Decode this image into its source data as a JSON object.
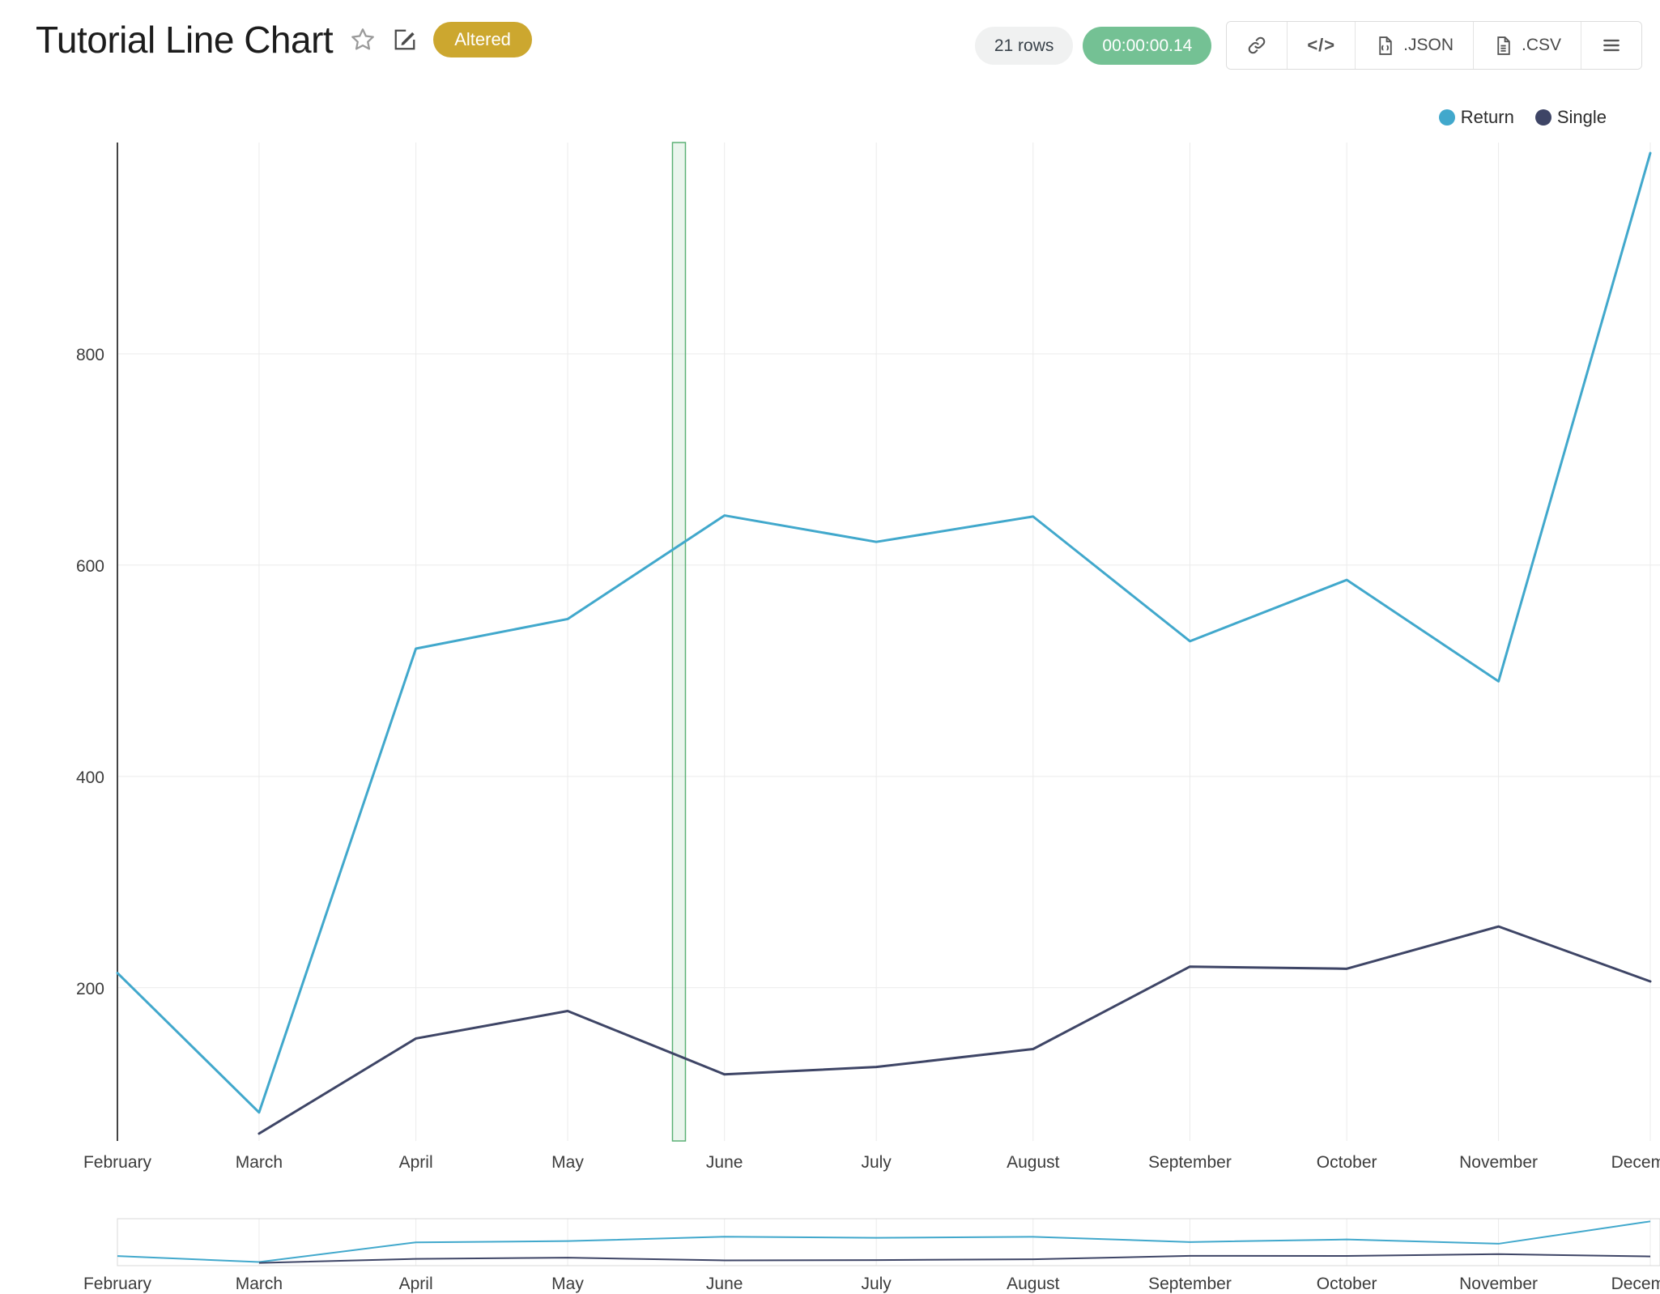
{
  "header": {
    "title": "Tutorial Line Chart",
    "badge": "Altered",
    "rows_count": "21 rows",
    "execution_time": "00:00:00.14",
    "buttons": {
      "code": "</>",
      "json": ".JSON",
      "csv": ".CSV"
    }
  },
  "colors": {
    "badge": "#cca72f",
    "timer_pill": "#74c194",
    "rows_pill": "#f0f1f1",
    "selection_band": "#5cb176",
    "grid": "#ebebeb",
    "axis": "#444444"
  },
  "chart_data": {
    "type": "line",
    "title": "Tutorial Line Chart",
    "categories": [
      "February",
      "March",
      "April",
      "May",
      "June",
      "July",
      "August",
      "September",
      "October",
      "November",
      "December"
    ],
    "x_days": [
      0,
      28,
      59,
      89,
      120,
      150,
      181,
      212,
      243,
      273,
      303
    ],
    "series": [
      {
        "name": "Return",
        "color": "#41a8cc",
        "values": [
          214,
          82,
          521,
          549,
          647,
          622,
          646,
          528,
          586,
          490,
          990
        ]
      },
      {
        "name": "Single",
        "color": "#3e4566",
        "values": [
          null,
          62,
          152,
          178,
          118,
          125,
          142,
          220,
          218,
          258,
          206
        ]
      }
    ],
    "ylim": [
      55,
      1000
    ],
    "y_ticks": [
      200,
      400,
      600,
      800
    ],
    "grid": true,
    "legend_position": "top-right",
    "selection_band": {
      "x_day": 111
    },
    "rangeslider": true
  }
}
